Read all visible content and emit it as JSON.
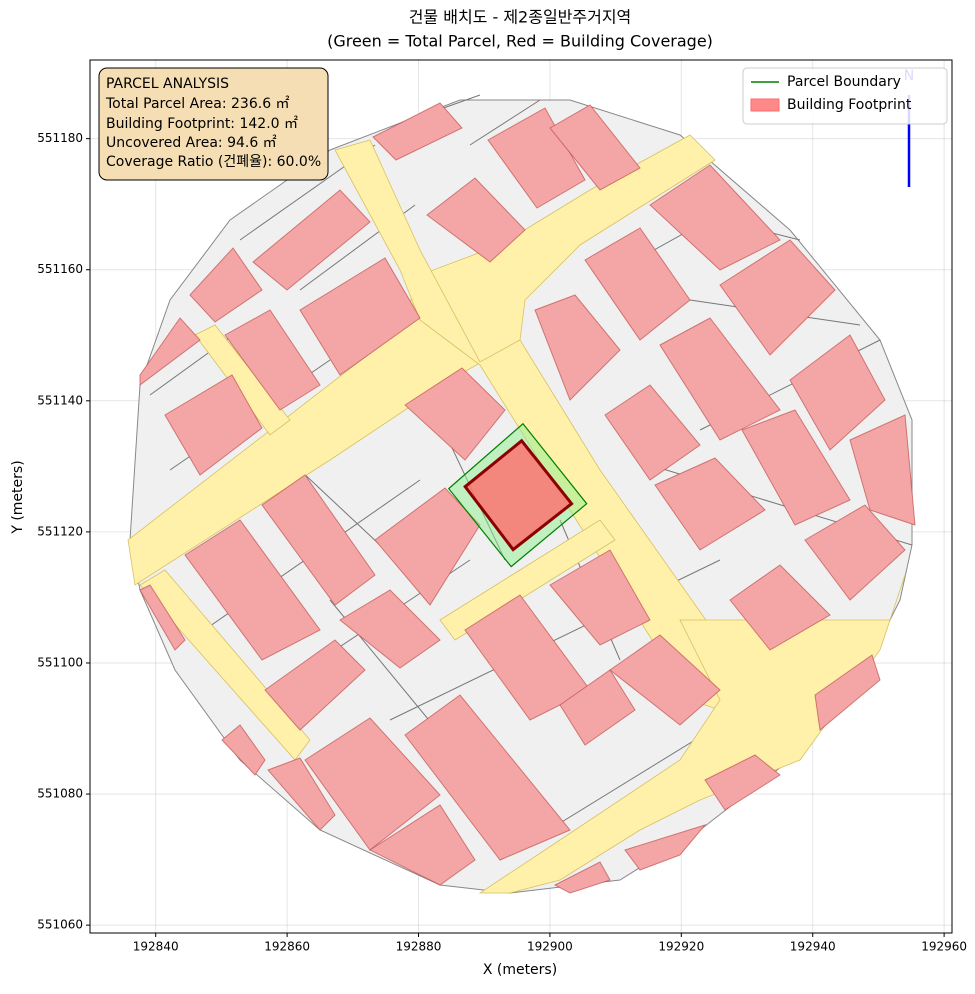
{
  "chart_data": {
    "type": "map",
    "title": "건물 배치도 - 제2종일반주거지역",
    "subtitle": "(Green = Total Parcel, Red = Building Coverage)",
    "x_label": "X (meters)",
    "y_label": "Y (meters)",
    "xlim": [
      192830,
      192961.2
    ],
    "ylim": [
      551058.8,
      551192
    ],
    "xticks": [
      192840,
      192860,
      192880,
      192900,
      192920,
      192940,
      192960
    ],
    "yticks": [
      551060,
      551080,
      551100,
      551120,
      551140,
      551160,
      551180
    ],
    "grid": true,
    "legend": "upper right",
    "north_label": "N",
    "annotation": {
      "heading": "PARCEL ANALYSIS",
      "lines": [
        "Total Parcel Area: 236.6 ㎡",
        "Building Footprint: 142.0 ㎡",
        "Uncovered Area: 94.6 ㎡",
        "Coverage Ratio (건폐율): 60.0%"
      ]
    },
    "series": [
      {
        "name": "Parcel Boundary",
        "color": "green",
        "fill": "#90ee90",
        "x": [
          192895.9,
          192905.6,
          192894.1,
          192884.6
        ],
        "y": [
          551136.5,
          551124.3,
          551114.7,
          551126.6
        ]
      },
      {
        "name": "Building Footprint",
        "color": "#ff6b6b",
        "edgecolor": "darkred",
        "x": [
          192895.7,
          192903.3,
          192894.4,
          192887.1
        ],
        "y": [
          551133.9,
          551124.3,
          551117.3,
          551126.9
        ]
      }
    ]
  }
}
